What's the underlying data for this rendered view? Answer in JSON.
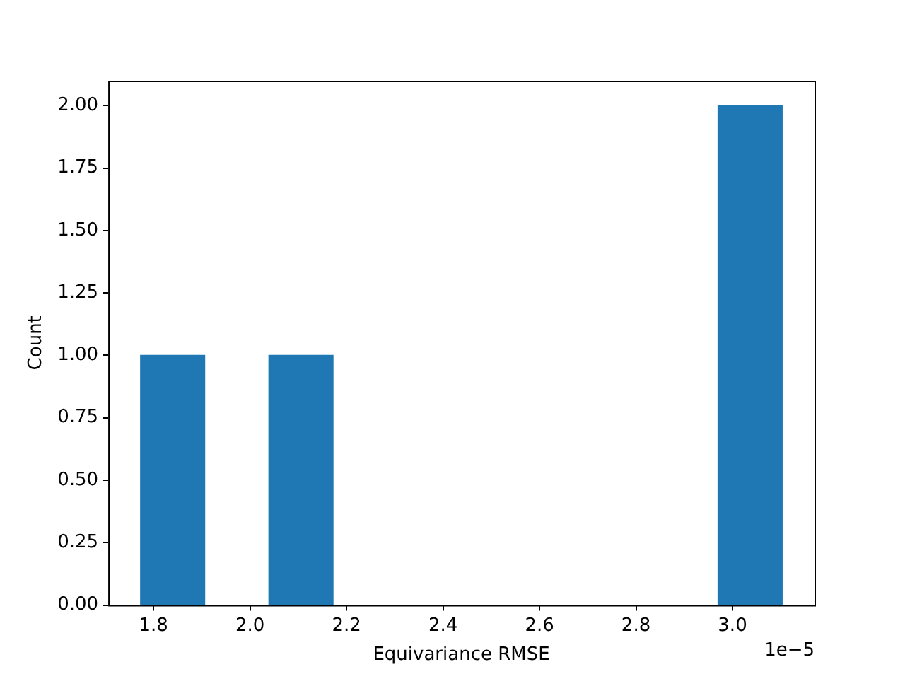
{
  "chart_data": {
    "type": "histogram",
    "xlabel": "Equivariance RMSE",
    "ylabel": "Count",
    "color": "#1f77b4",
    "bins": [
      1.773,
      1.906,
      2.039,
      2.172,
      2.305,
      2.438,
      2.571,
      2.704,
      2.837,
      2.97,
      3.103
    ],
    "values": [
      1,
      0,
      1,
      0,
      0,
      0,
      0,
      0,
      0,
      2
    ],
    "xlim": [
      1.706,
      3.17
    ],
    "xticks": [
      {
        "value": 1.8,
        "label": "1.8"
      },
      {
        "value": 2.0,
        "label": "2.0"
      },
      {
        "value": 2.2,
        "label": "2.2"
      },
      {
        "value": 2.4,
        "label": "2.4"
      },
      {
        "value": 2.6,
        "label": "2.6"
      },
      {
        "value": 2.8,
        "label": "2.8"
      },
      {
        "value": 3.0,
        "label": "3.0"
      }
    ],
    "ylim": [
      0,
      2.1
    ],
    "yticks": [
      {
        "value": 0,
        "label": "0.00"
      },
      {
        "value": 0.25,
        "label": "0.25"
      },
      {
        "value": 0.5,
        "label": "0.50"
      },
      {
        "value": 0.75,
        "label": "0.75"
      },
      {
        "value": 1,
        "label": "1.00"
      },
      {
        "value": 1.25,
        "label": "1.25"
      },
      {
        "value": 1.5,
        "label": "1.50"
      },
      {
        "value": 1.75,
        "label": "1.75"
      },
      {
        "value": 2,
        "label": "2.00"
      }
    ],
    "annotations": [
      "1e−5"
    ],
    "grid": false,
    "legend": false
  }
}
